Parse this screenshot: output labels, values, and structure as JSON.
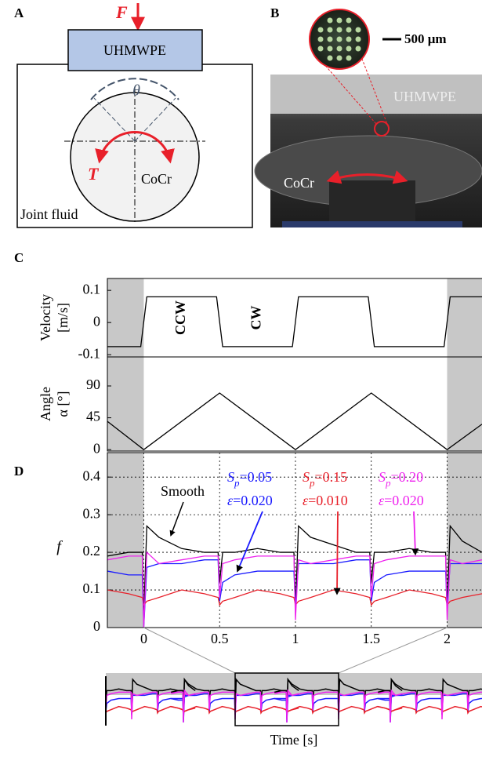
{
  "figure": {
    "panel_a": {
      "label": "A",
      "force": "F",
      "block": "UHMWPE",
      "angle": "θ",
      "torque": "T",
      "ball": "CoCr",
      "fluid": "Joint fluid"
    },
    "panel_b": {
      "label": "B",
      "scale": "500 μm",
      "top": "UHMWPE",
      "bottom": "CoCr"
    },
    "panel_c": {
      "label": "C",
      "ccw": "CCW",
      "cw": "CW"
    },
    "panel_d": {
      "label": "D"
    },
    "xlabel": "Time [s]"
  },
  "chart_data": [
    {
      "type": "line",
      "ylabel": [
        "Velocity",
        "[m/s]"
      ],
      "xlim": [
        -0.24,
        2.23
      ],
      "ylim": [
        -0.107,
        0.137
      ],
      "yticks": [
        0.1,
        0,
        -0.1
      ],
      "shade": [
        [
          -0.24,
          0
        ],
        [
          2,
          2.23
        ]
      ],
      "x": [
        -0.24,
        -0.02,
        0.02,
        0.48,
        0.52,
        0.98,
        1.02,
        1.48,
        1.52,
        1.98,
        2.02,
        2.23
      ],
      "series": [
        {
          "color": "#000000",
          "values": [
            -0.075,
            -0.075,
            0.08,
            0.08,
            -0.075,
            -0.075,
            0.08,
            0.08,
            -0.075,
            -0.075,
            0.08,
            0.08
          ]
        }
      ]
    },
    {
      "type": "line",
      "ylabel": [
        "Angle",
        "α [°]"
      ],
      "xlim": [
        -0.24,
        2.23
      ],
      "ylim": [
        -2,
        131
      ],
      "yticks": [
        90,
        45,
        0
      ],
      "shade": [
        [
          -0.24,
          0
        ],
        [
          2,
          2.23
        ]
      ],
      "x": [
        -0.24,
        0,
        0.5,
        1,
        1.5,
        2,
        2.23
      ],
      "series": [
        {
          "color": "#000000",
          "values": [
            40,
            0,
            80,
            0,
            80,
            0,
            36
          ]
        }
      ]
    },
    {
      "type": "line",
      "ylabel": "f",
      "xlim": [
        -0.24,
        2.23
      ],
      "ylim": [
        0,
        0.465
      ],
      "yticks": [
        0,
        0.1,
        0.2,
        0.3,
        0.4
      ],
      "xticks": [
        0,
        0.5,
        1,
        1.5,
        2
      ],
      "grid": true,
      "shade": [
        [
          -0.24,
          0
        ],
        [
          2,
          2.23
        ]
      ],
      "x": [
        -0.24,
        -0.1,
        -0.01,
        0,
        0.02,
        0.1,
        0.25,
        0.4,
        0.49,
        0.5,
        0.52,
        0.6,
        0.75,
        0.9,
        0.99,
        1,
        1.02,
        1.1,
        1.25,
        1.4,
        1.49,
        1.5,
        1.52,
        1.6,
        1.75,
        1.9,
        1.99,
        2,
        2.02,
        2.1,
        2.23
      ],
      "series": [
        {
          "name": "Smooth",
          "color": "#000000",
          "values": [
            0.19,
            0.2,
            0.2,
            0.03,
            0.27,
            0.24,
            0.21,
            0.2,
            0.2,
            0.12,
            0.2,
            0.2,
            0.21,
            0.2,
            0.2,
            0.05,
            0.27,
            0.24,
            0.22,
            0.2,
            0.2,
            0.12,
            0.2,
            0.2,
            0.21,
            0.2,
            0.2,
            0.05,
            0.27,
            0.23,
            0.2
          ]
        },
        {
          "name": [
            "S",
            "p",
            "=0.05",
            "ε",
            "=0.020"
          ],
          "color": "#1a1aff",
          "values": [
            0.15,
            0.14,
            0.14,
            0.0,
            0.16,
            0.17,
            0.17,
            0.18,
            0.18,
            0.07,
            0.12,
            0.14,
            0.15,
            0.15,
            0.15,
            0.05,
            0.17,
            0.17,
            0.17,
            0.18,
            0.18,
            0.07,
            0.12,
            0.14,
            0.15,
            0.15,
            0.15,
            0.05,
            0.17,
            0.17,
            0.17
          ]
        },
        {
          "name": [
            "S",
            "p",
            "=0.15",
            "ε",
            "=0.010"
          ],
          "color": "#e8202a",
          "values": [
            0.1,
            0.09,
            0.08,
            0.06,
            0.07,
            0.08,
            0.1,
            0.09,
            0.08,
            0.06,
            0.07,
            0.08,
            0.1,
            0.09,
            0.08,
            0.06,
            0.07,
            0.08,
            0.1,
            0.09,
            0.08,
            0.06,
            0.07,
            0.08,
            0.1,
            0.09,
            0.08,
            0.06,
            0.07,
            0.08,
            0.09
          ]
        },
        {
          "name": [
            "S",
            "p",
            "=0.20",
            "ε",
            "=0.020"
          ],
          "color": "#ee22ee",
          "values": [
            0.18,
            0.19,
            0.19,
            0.0,
            0.2,
            0.17,
            0.18,
            0.19,
            0.19,
            0.08,
            0.17,
            0.18,
            0.19,
            0.19,
            0.19,
            0.02,
            0.18,
            0.17,
            0.18,
            0.19,
            0.19,
            0.08,
            0.17,
            0.18,
            0.19,
            0.19,
            0.19,
            0.02,
            0.18,
            0.17,
            0.18
          ]
        }
      ]
    }
  ]
}
